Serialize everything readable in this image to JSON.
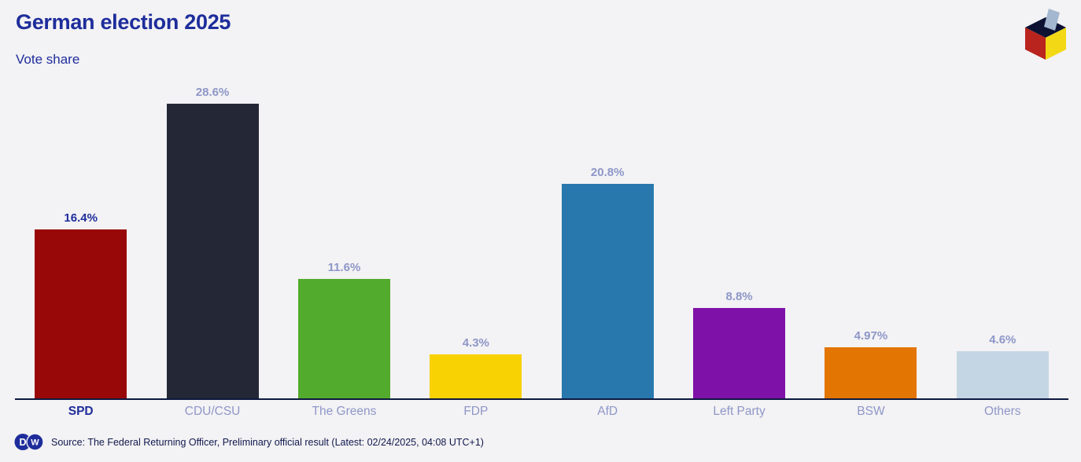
{
  "header": {
    "title": "German election 2025",
    "subtitle": "Vote share"
  },
  "logo": {
    "name": "ballot-box",
    "colors": {
      "top_face": "#0d1233",
      "left_face": "#b9241e",
      "right_face": "#f3d816",
      "ballot_paper": "#a3b7cf"
    }
  },
  "chart_data": {
    "type": "bar",
    "title": "German election 2025",
    "subtitle": "Vote share",
    "categories": [
      "SPD",
      "CDU/CSU",
      "The Greens",
      "FDP",
      "AfD",
      "Left Party",
      "BSW",
      "Others"
    ],
    "values": [
      16.4,
      28.6,
      11.6,
      4.3,
      20.8,
      8.8,
      4.97,
      4.6
    ],
    "value_labels": [
      "16.4%",
      "28.6%",
      "11.6%",
      "4.3%",
      "20.8%",
      "8.8%",
      "4.97%",
      "4.6%"
    ],
    "bar_colors": [
      "#990808",
      "#242836",
      "#52ab2c",
      "#f8d203",
      "#2878ad",
      "#7e12a8",
      "#e37503",
      "#c4d6e4"
    ],
    "highlighted_category": "SPD",
    "highlight_label_color": "#1e2d9b",
    "label_color": "#8e97c8",
    "axis_color": "#0d1840",
    "background_color": "#f3f2f4",
    "ylim": [
      0,
      30
    ],
    "grid": false,
    "legend": "none",
    "value_label_position": "above-bar",
    "xlabel": "",
    "ylabel": ""
  },
  "footer": {
    "brand_letters": [
      "D",
      "W"
    ],
    "source": "Source: The Federal Returning Officer, Preliminary official result (Latest: 02/24/2025, 04:08 UTC+1)"
  }
}
